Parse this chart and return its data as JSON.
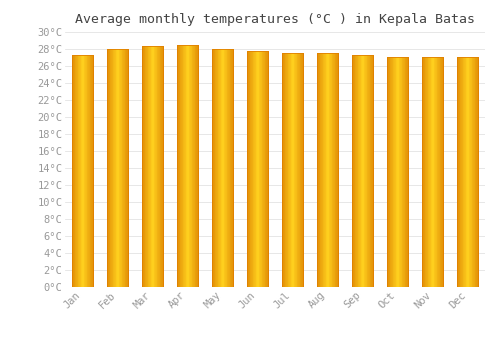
{
  "title": "Average monthly temperatures (°C ) in Kepala Batas",
  "months": [
    "Jan",
    "Feb",
    "Mar",
    "Apr",
    "May",
    "Jun",
    "Jul",
    "Aug",
    "Sep",
    "Oct",
    "Nov",
    "Dec"
  ],
  "temps": [
    27.2,
    28.0,
    28.3,
    28.4,
    28.0,
    27.7,
    27.5,
    27.5,
    27.2,
    27.0,
    27.0,
    27.0
  ],
  "ylim": [
    0,
    30
  ],
  "yticks": [
    0,
    2,
    4,
    6,
    8,
    10,
    12,
    14,
    16,
    18,
    20,
    22,
    24,
    26,
    28,
    30
  ],
  "bar_color_edge": "#E08000",
  "bar_color_center": "#FFD040",
  "bar_color_main": "#FFAA00",
  "background_color": "#ffffff",
  "grid_color": "#dddddd",
  "title_fontsize": 9.5,
  "tick_fontsize": 7.5,
  "tick_color": "#999999",
  "title_color": "#444444"
}
